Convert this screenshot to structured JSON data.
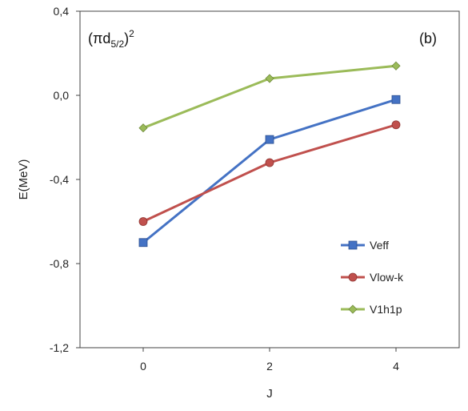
{
  "chart_data": {
    "type": "line",
    "x": [
      0,
      2,
      4
    ],
    "xticks": [
      "0",
      "2",
      "4"
    ],
    "xlim": [
      -1,
      5
    ],
    "ylim": [
      -1.2,
      0.4
    ],
    "yticks": [
      -1.2,
      -0.8,
      -0.4,
      0.0,
      0.4
    ],
    "ytick_labels": [
      "-1,2",
      "-0,8",
      "-0,4",
      "0,0",
      "0,4"
    ],
    "xlabel": "J",
    "ylabel": "E(MeV)",
    "grid": false,
    "legend_position": "bottom-right",
    "annotation_main": "(πd",
    "annotation_sub": "5/2",
    "annotation_close": ")",
    "annotation_sup": "2",
    "panel_label": "(b)",
    "series": [
      {
        "name": "Veff",
        "values": [
          -0.7,
          -0.21,
          -0.02
        ],
        "color": "#4472C4",
        "marker": "square"
      },
      {
        "name": "Vlow-k",
        "values": [
          -0.6,
          -0.32,
          -0.14
        ],
        "color": "#C0504D",
        "marker": "circle"
      },
      {
        "name": "V1h1p",
        "values": [
          -0.155,
          0.08,
          0.14
        ],
        "color": "#9BBB59",
        "marker": "diamond"
      }
    ]
  }
}
